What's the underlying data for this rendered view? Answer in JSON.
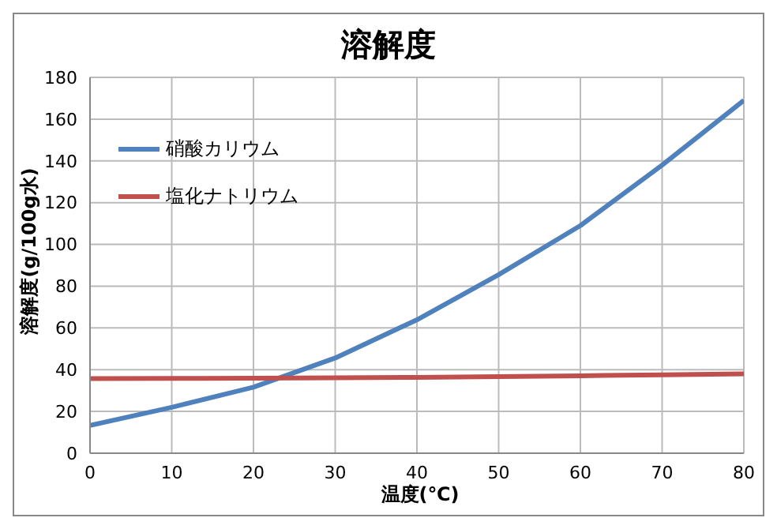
{
  "chart_data": {
    "type": "line",
    "title": "溶解度",
    "xlabel": "温度(℃)",
    "ylabel": "溶解度(g/100g水)",
    "x": [
      0,
      10,
      20,
      30,
      40,
      50,
      60,
      70,
      80
    ],
    "series": [
      {
        "name": "硝酸カリウム",
        "color": "#4f81bd",
        "values": [
          13.3,
          22,
          31.6,
          45.6,
          63.9,
          85.5,
          109,
          138,
          169
        ]
      },
      {
        "name": "塩化ナトリウム",
        "color": "#c0504d",
        "values": [
          35.7,
          35.8,
          35.9,
          36.1,
          36.3,
          36.7,
          37.1,
          37.5,
          38
        ]
      }
    ],
    "xlim": [
      0,
      80
    ],
    "xticks": [
      0,
      10,
      20,
      30,
      40,
      50,
      60,
      70,
      80
    ],
    "ylim": [
      0,
      180
    ],
    "yticks": [
      0,
      20,
      40,
      60,
      80,
      100,
      120,
      140,
      160,
      180
    ],
    "grid": true,
    "legend": "top left",
    "marker": "none",
    "line_style": "solid"
  }
}
